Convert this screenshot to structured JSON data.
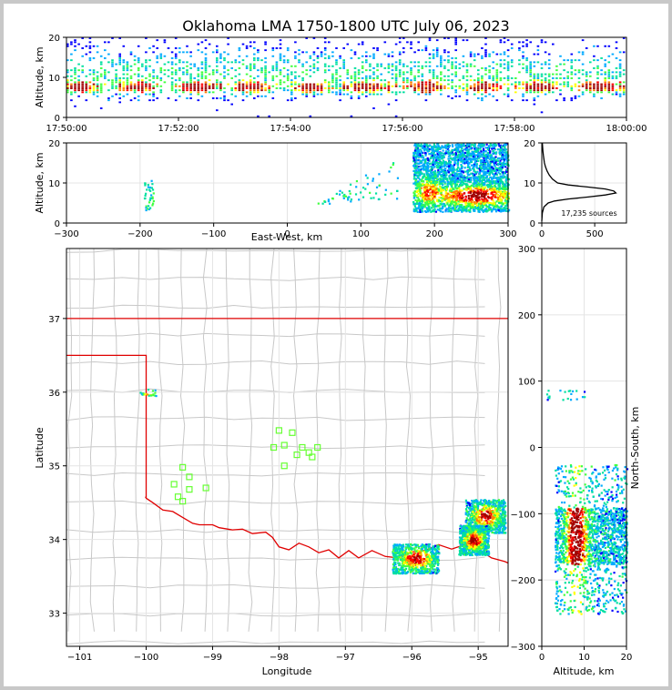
{
  "chart_data": [
    {
      "panel": "time-altitude",
      "type": "heatmap",
      "title": "Oklahoma LMA 1750-1800 UTC July 06, 2023",
      "ylabel": "Altitude, km",
      "xlim": [
        "17:50:00",
        "18:00:00"
      ],
      "ylim": [
        0,
        20
      ],
      "x_ticks": [
        "17:50:00",
        "17:52:00",
        "17:54:00",
        "17:56:00",
        "17:58:00",
        "18:00:00"
      ],
      "y_ticks": [
        0,
        10,
        20
      ],
      "density_peak_altitude_km": 7.5
    },
    {
      "panel": "east-west-altitude",
      "type": "heatmap",
      "xlabel": "East-West, km",
      "ylabel": "Altitude, km",
      "xlim": [
        -300,
        300
      ],
      "ylim": [
        0,
        20
      ],
      "x_ticks": [
        -300,
        -200,
        -100,
        0,
        100,
        200,
        300
      ],
      "y_ticks": [
        0,
        10,
        20
      ],
      "clusters": [
        {
          "x_range": [
            -195,
            -182
          ],
          "alt_range": [
            3,
            11
          ]
        },
        {
          "x_range": [
            40,
            150
          ],
          "alt_range": [
            3,
            16
          ]
        },
        {
          "x_range": [
            170,
            300
          ],
          "alt_range": [
            3,
            20
          ],
          "core_x": 255,
          "core_alt": 7
        }
      ]
    },
    {
      "panel": "altitude-histogram",
      "type": "line",
      "xlim": [
        0,
        800
      ],
      "ylim": [
        0,
        20
      ],
      "x_ticks": [
        0,
        500
      ],
      "y_ticks": [
        0,
        10,
        20
      ],
      "annotation": "17,235 sources",
      "x": [
        0,
        5,
        20,
        60,
        120,
        250,
        440,
        600,
        700,
        680,
        600,
        430,
        250,
        150,
        100,
        70,
        50,
        35,
        25,
        20,
        15,
        10,
        8,
        5
      ],
      "y": [
        0.5,
        2.5,
        4.0,
        5.0,
        5.5,
        6.0,
        6.5,
        7.0,
        7.5,
        8.0,
        8.5,
        9.0,
        9.5,
        10.0,
        11.0,
        12.0,
        13.0,
        14.0,
        15.0,
        16.0,
        17.0,
        18.0,
        19.0,
        20.0
      ]
    },
    {
      "panel": "plan-view-map",
      "type": "scatter",
      "xlabel": "Longitude",
      "ylabel": "Latitude",
      "xlim": [
        -101.2,
        -94.55
      ],
      "ylim": [
        32.55,
        37.95
      ],
      "x_ticks": [
        -101,
        -100,
        -99,
        -98,
        -97,
        -96,
        -95
      ],
      "y_ticks": [
        33,
        34,
        35,
        36,
        37
      ],
      "stations": [
        {
          "lon": -99.45,
          "lat": 34.98
        },
        {
          "lon": -99.35,
          "lat": 34.85
        },
        {
          "lon": -99.58,
          "lat": 34.75
        },
        {
          "lon": -99.35,
          "lat": 34.68
        },
        {
          "lon": -99.52,
          "lat": 34.58
        },
        {
          "lon": -99.45,
          "lat": 34.52
        },
        {
          "lon": -99.1,
          "lat": 34.7
        },
        {
          "lon": -98.0,
          "lat": 35.48
        },
        {
          "lon": -97.8,
          "lat": 35.45
        },
        {
          "lon": -98.08,
          "lat": 35.25
        },
        {
          "lon": -97.92,
          "lat": 35.28
        },
        {
          "lon": -97.65,
          "lat": 35.25
        },
        {
          "lon": -97.42,
          "lat": 35.25
        },
        {
          "lon": -97.55,
          "lat": 35.18
        },
        {
          "lon": -97.73,
          "lat": 35.15
        },
        {
          "lon": -97.5,
          "lat": 35.12
        },
        {
          "lon": -97.92,
          "lat": 35.0
        }
      ],
      "source_clusters": [
        {
          "lon_range": [
            -100.1,
            -99.85
          ],
          "lat_range": [
            35.95,
            36.05
          ]
        },
        {
          "lon_range": [
            -95.2,
            -94.6
          ],
          "lat_range": [
            34.1,
            34.55
          ]
        },
        {
          "lon_range": [
            -96.3,
            -95.6
          ],
          "lat_range": [
            33.55,
            33.95
          ]
        },
        {
          "lon_range": [
            -95.3,
            -94.85
          ],
          "lat_range": [
            33.8,
            34.2
          ]
        }
      ],
      "state_border_color": "#e00000",
      "county_line_color": "#c8c8c8",
      "station_color": "#66ff33"
    },
    {
      "panel": "altitude-north-south",
      "type": "heatmap",
      "xlabel": "Altitude, km",
      "ylabel": "North-South, km",
      "xlim": [
        0,
        20
      ],
      "ylim": [
        -300,
        300
      ],
      "x_ticks": [
        0,
        10,
        20
      ],
      "y_ticks": [
        -300,
        -200,
        -100,
        0,
        100,
        200,
        300
      ],
      "clusters": [
        {
          "alt_range": [
            1,
            10
          ],
          "ns_range": [
            72,
            88
          ]
        },
        {
          "alt_range": [
            3,
            20
          ],
          "ns_range": [
            -250,
            -25
          ],
          "core_alt": 8,
          "core_ns_range": [
            -175,
            -90
          ]
        }
      ]
    }
  ],
  "colormap": [
    "#ffffff",
    "#0000ff",
    "#00aaff",
    "#00e0a0",
    "#40ff40",
    "#ffff00",
    "#ff8000",
    "#ff0000",
    "#a00000"
  ]
}
